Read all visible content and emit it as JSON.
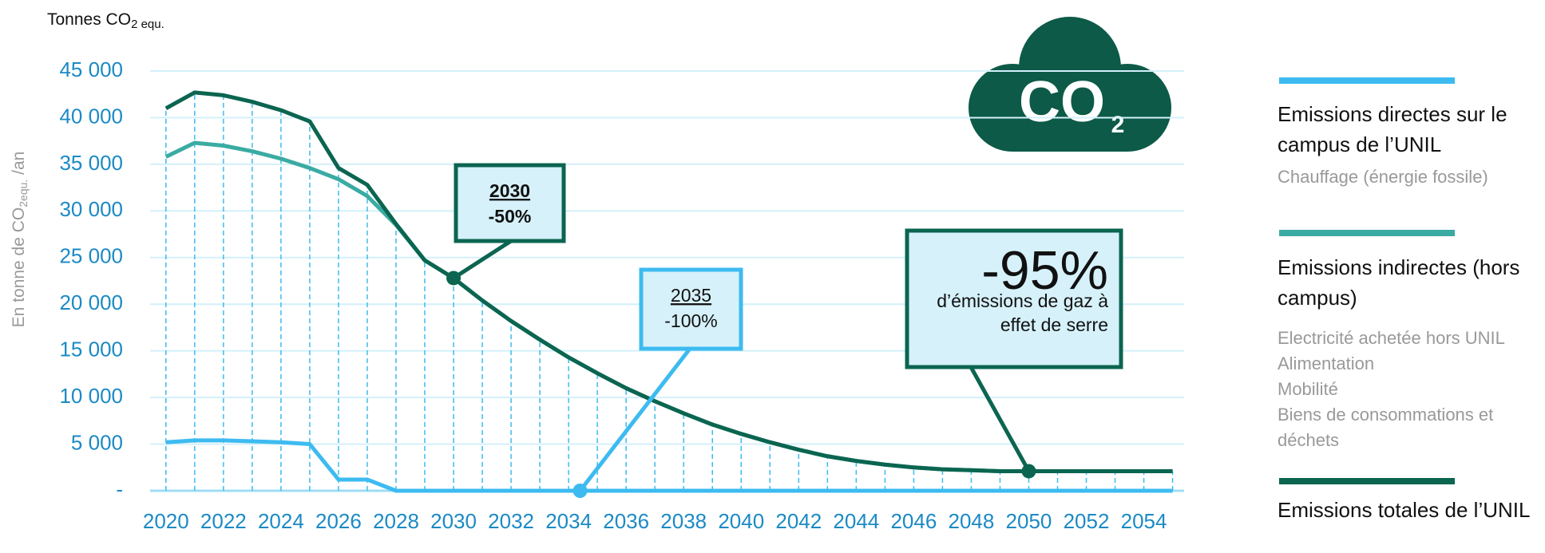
{
  "chart_data": {
    "type": "line",
    "top_label": {
      "text": "Tonnes CO",
      "sub": "2 equ."
    },
    "y_label": {
      "text": "En tonne de CO",
      "sub": "2equ.",
      "tail": " /an"
    },
    "icon_text": "CO",
    "icon_sub": "2",
    "x": [
      2020,
      2021,
      2022,
      2023,
      2024,
      2025,
      2026,
      2027,
      2028,
      2029,
      2030,
      2031,
      2032,
      2033,
      2034,
      2035,
      2036,
      2037,
      2038,
      2039,
      2040,
      2041,
      2042,
      2043,
      2044,
      2045,
      2046,
      2047,
      2048,
      2049,
      2050,
      2051,
      2052,
      2053,
      2054,
      2055
    ],
    "xlim": [
      2019.45,
      2055.4
    ],
    "xticks": [
      2020,
      2022,
      2024,
      2026,
      2028,
      2030,
      2032,
      2034,
      2036,
      2038,
      2040,
      2042,
      2044,
      2046,
      2048,
      2050,
      2052,
      2054
    ],
    "ylim": [
      0,
      45000
    ],
    "yticks": [
      {
        "value": 0,
        "label": "-"
      },
      {
        "value": 5000,
        "label": "5 000"
      },
      {
        "value": 10000,
        "label": "10 000"
      },
      {
        "value": 15000,
        "label": "15 000"
      },
      {
        "value": 20000,
        "label": "20 000"
      },
      {
        "value": 25000,
        "label": "25 000"
      },
      {
        "value": 30000,
        "label": "30 000"
      },
      {
        "value": 35000,
        "label": "35 000"
      },
      {
        "value": 40000,
        "label": "40 000"
      },
      {
        "value": 45000,
        "label": "45 000"
      }
    ],
    "grid": true,
    "series": [
      {
        "name": "Emissions directes sur le campus de l’UNIL",
        "color": "#3dbbf0",
        "details": [
          "Chauffage (énergie fossile)"
        ],
        "values": [
          5200,
          5400,
          5400,
          5300,
          5200,
          5000,
          1200,
          1200,
          0,
          0,
          0,
          0,
          0,
          0,
          0,
          0,
          0,
          0,
          0,
          0,
          0,
          0,
          0,
          0,
          0,
          0,
          0,
          0,
          0,
          0,
          0,
          0,
          0,
          0,
          0,
          0
        ]
      },
      {
        "name": "Emissions indirectes (hors campus)",
        "color": "#3aaba3",
        "details": [
          "Electricité achetée hors UNIL",
          "Alimentation",
          "Mobilité",
          "Biens de consommations et déchets"
        ],
        "values": [
          35800,
          37300,
          37000,
          36400,
          35600,
          34600,
          33400,
          31600,
          28500,
          24700,
          22800,
          20400,
          18200,
          16200,
          14300,
          12600,
          11000,
          9600,
          8300,
          7100,
          6100,
          5200,
          4400,
          3700,
          3200,
          2800,
          2500,
          2300,
          2200,
          2100,
          2100,
          2100,
          2100,
          2100,
          2100,
          2100
        ]
      },
      {
        "name": "Emissions totales de l’UNIL",
        "color": "#0b6550",
        "details": [],
        "values": [
          41000,
          42700,
          42400,
          41700,
          40800,
          39600,
          34600,
          32800,
          28600,
          24700,
          22800,
          20400,
          18200,
          16200,
          14300,
          12600,
          11000,
          9600,
          8300,
          7100,
          6100,
          5200,
          4400,
          3700,
          3200,
          2800,
          2500,
          2300,
          2200,
          2100,
          2100,
          2100,
          2100,
          2100,
          2100,
          2100
        ]
      }
    ],
    "annotations": [
      {
        "lines": [
          "2030",
          "-50%"
        ],
        "x": 2030,
        "y": 22800
      },
      {
        "lines": [
          "2035",
          "-100%"
        ],
        "x": 2034.4,
        "y": 0
      },
      {
        "lines": [
          "-95%",
          "d’émissions de gaz à",
          "effet de serre"
        ],
        "x": 2050,
        "y": 2100
      }
    ]
  }
}
